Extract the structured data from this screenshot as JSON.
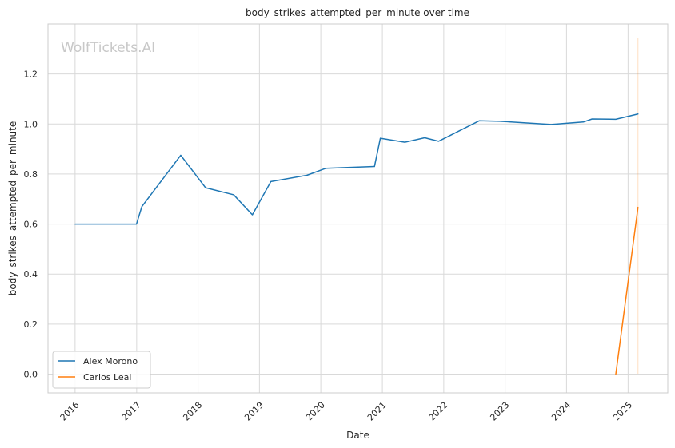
{
  "chart_data": {
    "type": "line",
    "title": "body_strikes_attempted_per_minute over time",
    "xlabel": "Date",
    "ylabel": "body_strikes_attempted_per_minute",
    "watermark": "WolfTickets.AI",
    "xlim": [
      "2015-07-24",
      "2025-08-25"
    ],
    "ylim": [
      -0.075,
      1.4
    ],
    "x_ticks": [
      "2016",
      "2017",
      "2018",
      "2019",
      "2020",
      "2021",
      "2022",
      "2023",
      "2024",
      "2025"
    ],
    "y_ticks": [
      "0.0",
      "0.2",
      "0.4",
      "0.6",
      "0.8",
      "1.0",
      "1.2"
    ],
    "y_tick_values": [
      0.0,
      0.2,
      0.4,
      0.6,
      0.8,
      1.0,
      1.2
    ],
    "grid": true,
    "legend_position": "lower-left",
    "colors": {
      "Alex Morono": "#1f77b4",
      "Carlos Leal": "#ff7f0e"
    },
    "series": [
      {
        "name": "Alex Morono",
        "color": "#1f77b4",
        "x": [
          "2016-01-01",
          "2016-12-31",
          "2017-02-01",
          "2017-09-20",
          "2018-02-15",
          "2018-08-01",
          "2018-11-20",
          "2019-03-10",
          "2019-10-10",
          "2020-02-01",
          "2020-11-15",
          "2020-12-20",
          "2021-05-15",
          "2021-09-10",
          "2021-12-01",
          "2022-08-01",
          "2022-12-01",
          "2023-10-01",
          "2024-04-10",
          "2024-06-01",
          "2024-10-20",
          "2025-03-01"
        ],
        "values": [
          0.6,
          0.6,
          0.67,
          0.875,
          0.745,
          0.717,
          0.637,
          0.77,
          0.795,
          0.823,
          0.83,
          0.943,
          0.927,
          0.945,
          0.931,
          1.013,
          1.011,
          0.998,
          1.008,
          1.02,
          1.019,
          1.04
        ]
      },
      {
        "name": "Carlos Leal",
        "color": "#ff7f0e",
        "x": [
          "2024-10-20",
          "2025-03-01"
        ],
        "values": [
          0.0,
          0.667
        ]
      }
    ],
    "vertical_markers": [
      {
        "x": "2025-03-01",
        "color": "#ff7f0e"
      }
    ]
  }
}
